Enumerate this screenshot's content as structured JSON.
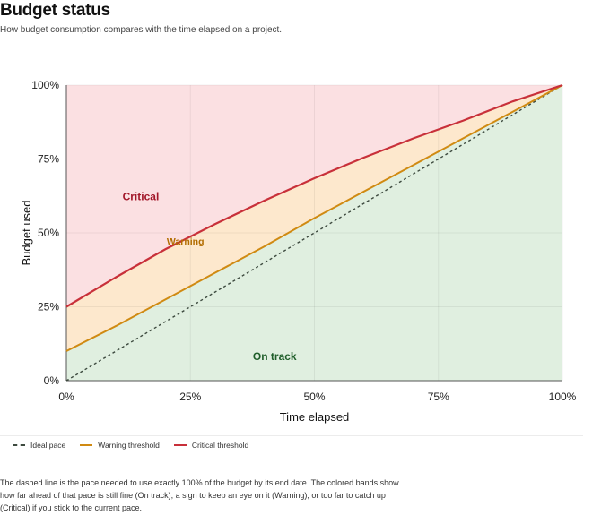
{
  "header": {
    "title": "Budget status",
    "subtitle": "How budget consumption compares with the time elapsed on a project."
  },
  "chart_data": {
    "type": "area",
    "xlabel": "Time elapsed",
    "ylabel": "Budget used",
    "xlim": [
      0,
      100
    ],
    "ylim": [
      0,
      100
    ],
    "x_ticks": [
      "0%",
      "25%",
      "50%",
      "75%",
      "100%"
    ],
    "y_ticks": [
      "0%",
      "25%",
      "50%",
      "75%",
      "100%"
    ],
    "grid": true,
    "x": [
      0,
      10,
      20,
      30,
      40,
      50,
      60,
      70,
      80,
      90,
      100
    ],
    "series": [
      {
        "name": "Ideal pace",
        "style": "dashed",
        "color": "#3d4a3f",
        "values": [
          0,
          10,
          20,
          30,
          40,
          50,
          60,
          70,
          80,
          90,
          100
        ]
      },
      {
        "name": "Warning threshold",
        "style": "solid",
        "color": "#d08a12",
        "values": [
          10,
          18.5,
          27.5,
          36.5,
          45.5,
          55,
          64,
          73,
          82,
          91,
          100
        ]
      },
      {
        "name": "Critical threshold",
        "style": "solid",
        "color": "#c8303a",
        "values": [
          25,
          35,
          44.5,
          53,
          61,
          68.5,
          75.5,
          82,
          88,
          94.5,
          100
        ]
      }
    ],
    "bands": [
      {
        "label": "Critical",
        "color": "#fbe0e2",
        "label_color": "#a3182a",
        "label_at": [
          15,
          61
        ]
      },
      {
        "label": "Warning",
        "color": "#fde8cd",
        "label_color": "#b26d00",
        "label_at": [
          24,
          46
        ]
      },
      {
        "label": "On track",
        "color": "#e0efe0",
        "label_color": "#1f5e2a",
        "label_at": [
          42,
          7
        ]
      }
    ],
    "legend": "bottom-left"
  },
  "legend": {
    "items": [
      {
        "label": "Ideal pace",
        "color": "#3d4a3f",
        "dashed": true
      },
      {
        "label": "Warning threshold",
        "color": "#d08a12",
        "dashed": false
      },
      {
        "label": "Critical threshold",
        "color": "#c8303a",
        "dashed": false
      }
    ]
  },
  "note": "The dashed line is the pace needed to use exactly 100% of the budget by its end date. The colored bands show how far ahead of that pace is still fine (On track), a sign to keep an eye on it (Warning), or too far to catch up (Critical) if you stick to the current pace."
}
